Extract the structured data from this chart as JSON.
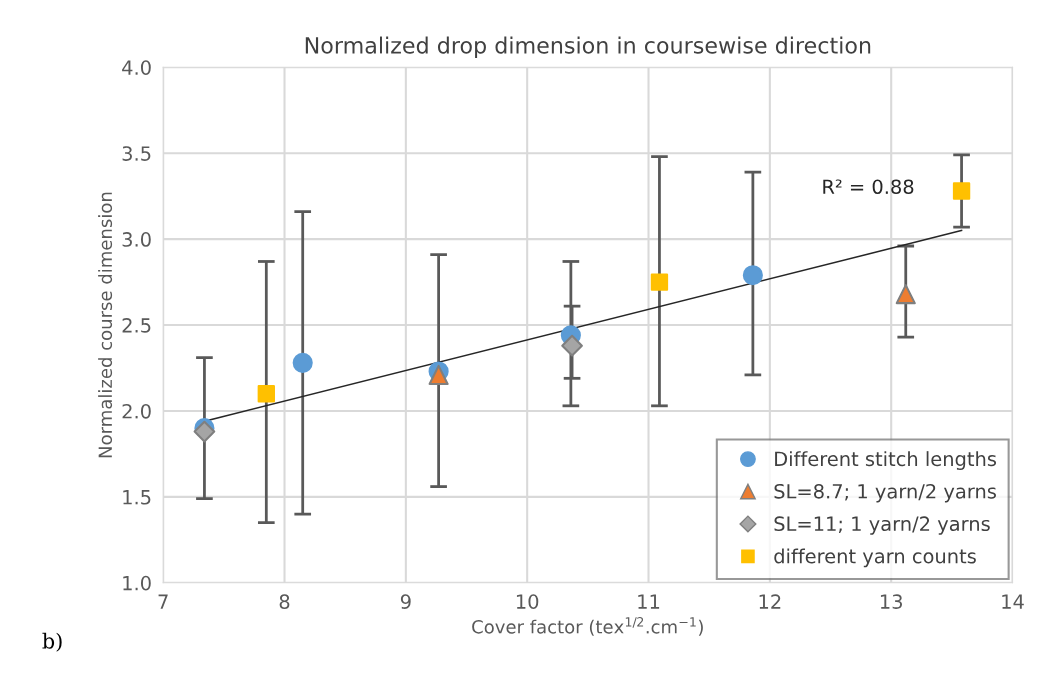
{
  "chart_data": {
    "type": "scatter",
    "title": "Normalized drop dimension in coursewise direction",
    "xlabel": "Cover factor (tex$^{1/2}$.cm$^{−1}$)",
    "ylabel": "Normalized course dimension",
    "xlim": [
      7,
      14
    ],
    "xticks": [
      7,
      8,
      9,
      10,
      11,
      12,
      13,
      14
    ],
    "ylim": [
      1.0,
      4.0
    ],
    "yticks": [
      {
        "value": 1.0,
        "label": "1.0"
      },
      {
        "value": 1.5,
        "label": "1.5"
      },
      {
        "value": 2.0,
        "label": "2.0"
      },
      {
        "value": 2.5,
        "label": "2.5"
      },
      {
        "value": 3.0,
        "label": "3.0"
      },
      {
        "value": 3.5,
        "label": "3.5"
      },
      {
        "value": 4.0,
        "label": "4.0"
      }
    ],
    "grid": true,
    "legend": "bottom right",
    "annotations": [
      "R² = 0.88",
      "b)"
    ],
    "series": [
      {
        "type": "line",
        "color": "#262626",
        "x": [
          7.34,
          13.58
        ],
        "values": [
          1.94,
          3.05
        ],
        "marker": "none"
      },
      {
        "name": "Different stitch lengths",
        "color": "#5b9bd5",
        "marker": "circle",
        "x": [
          7.34,
          8.15,
          9.27,
          10.36,
          11.86
        ],
        "values": [
          1.9,
          2.28,
          2.23,
          2.44,
          2.79
        ],
        "errors": [
          [
            1.49,
            2.31
          ],
          [
            1.4,
            3.16
          ],
          [
            1.56,
            2.91
          ],
          [
            2.03,
            2.87
          ],
          [
            2.21,
            3.39
          ]
        ]
      },
      {
        "name": "SL=8.7; 1 yarn/2 yarns",
        "color": "#ed7d31",
        "marker": "triangle",
        "x": [
          9.27,
          13.12
        ],
        "values": [
          2.21,
          2.68
        ],
        "errors": [
          null,
          [
            2.43,
            2.96
          ]
        ]
      },
      {
        "name": "SL=11; 1 yarn/2 yarns",
        "color": "#a5a5a5",
        "marker": "diamond",
        "x": [
          7.34,
          10.37
        ],
        "values": [
          1.88,
          2.38
        ],
        "errors": [
          null,
          [
            2.19,
            2.61
          ]
        ]
      },
      {
        "name": "different yarn counts",
        "color": "#ffc000",
        "marker": "square",
        "x": [
          7.85,
          11.09,
          13.58
        ],
        "values": [
          2.1,
          2.75,
          3.28
        ],
        "errors": [
          [
            1.35,
            2.87
          ],
          [
            2.03,
            3.48
          ],
          [
            3.07,
            3.49
          ]
        ]
      }
    ]
  }
}
